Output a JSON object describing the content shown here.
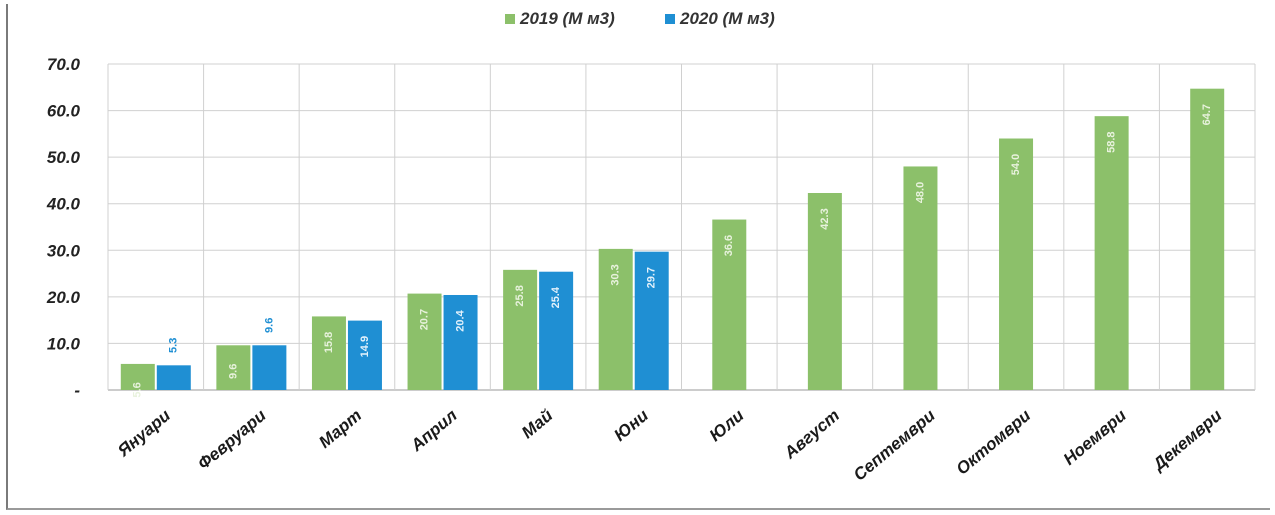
{
  "chart_data": {
    "type": "bar",
    "categories": [
      "Януари",
      "Февруари",
      "Март",
      "Април",
      "Май",
      "Юни",
      "Юли",
      "Август",
      "Септември",
      "Октомври",
      "Ноември",
      "Декември"
    ],
    "series": [
      {
        "name": "2019 (М м3)",
        "color": "#8cc06a",
        "values": [
          5.6,
          9.6,
          15.8,
          20.7,
          25.8,
          30.3,
          36.6,
          42.3,
          48.0,
          54.0,
          58.8,
          64.7
        ],
        "labels": [
          "5.6",
          "9.6",
          "15.8",
          "20.7",
          "25.8",
          "30.3",
          "36.6",
          "42.3",
          "48.0",
          "54.0",
          "58.8",
          "64.7"
        ]
      },
      {
        "name": "2020 (М м3)",
        "color": "#1f8fd3",
        "values": [
          5.3,
          9.6,
          14.9,
          20.4,
          25.4,
          29.7,
          null,
          null,
          null,
          null,
          null,
          null
        ],
        "labels": [
          "5.3",
          "9.6",
          "14.9",
          "20.4",
          "25.4",
          "29.7",
          "",
          "",
          "",
          "",
          "",
          ""
        ]
      }
    ],
    "yticks": [
      "-",
      "10.0",
      "20.0",
      "30.0",
      "40.0",
      "50.0",
      "60.0",
      "70.0"
    ],
    "ylim": [
      0,
      70
    ],
    "grid": true,
    "legend_position": "top-center"
  }
}
